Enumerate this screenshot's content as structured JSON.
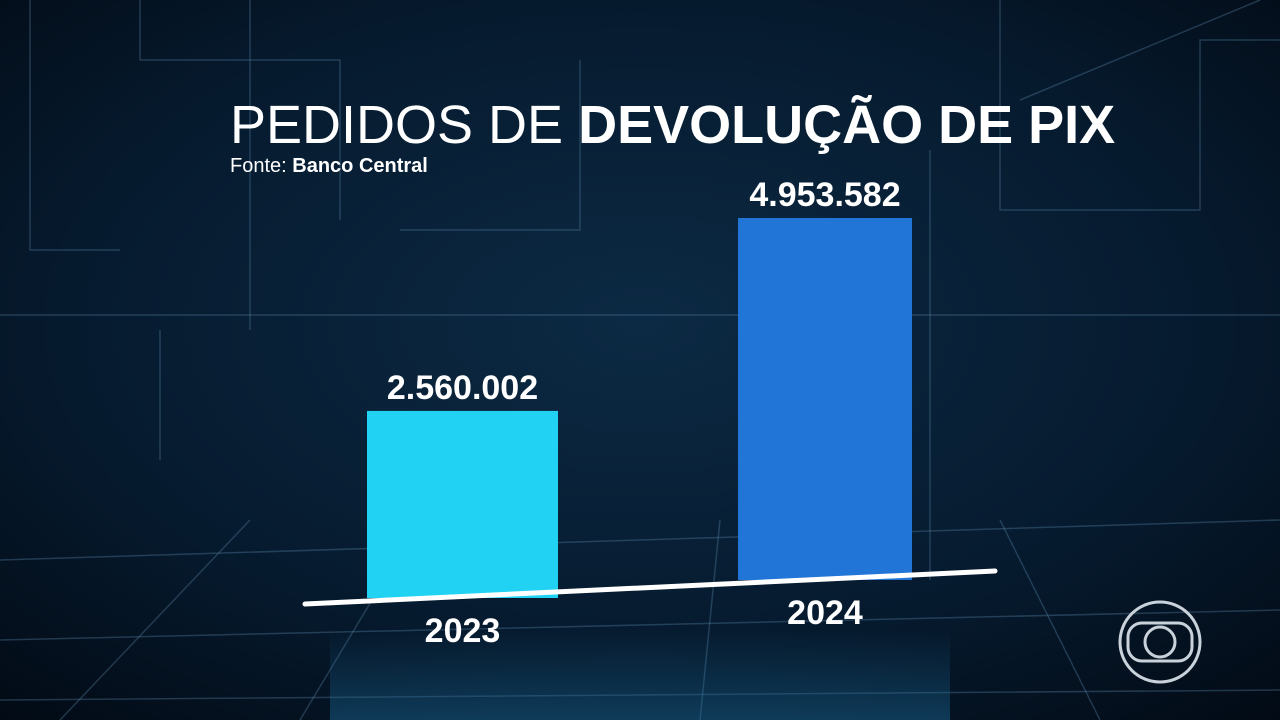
{
  "chart_data": {
    "type": "bar",
    "title": [
      "PEDIDOS DE",
      "DEVOLUÇÃO DE PIX"
    ],
    "source": [
      "Fonte:",
      "Banco Central"
    ],
    "categories": [
      "2023",
      "2024"
    ],
    "values": [
      2560002,
      4953582
    ],
    "value_labels": [
      "2.560.002",
      "4.953.582"
    ],
    "colors": [
      "#22d2f2",
      "#2175d6"
    ]
  }
}
